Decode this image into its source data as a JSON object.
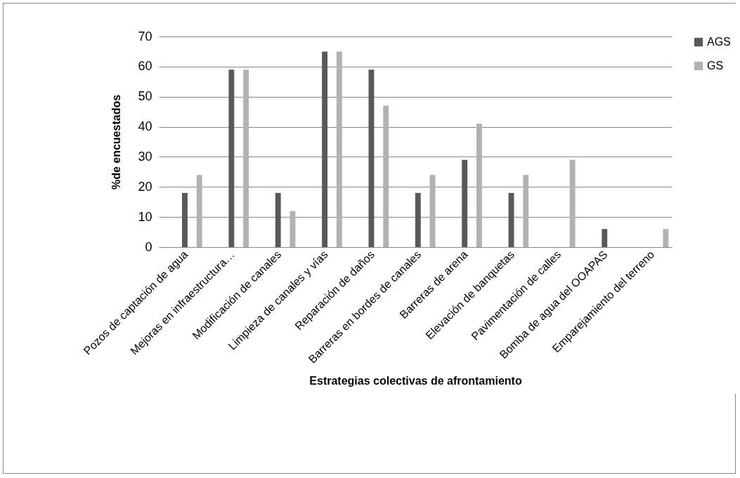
{
  "chart_data": {
    "type": "bar",
    "xlabel": "Estrategias colectivas de afrontamiento",
    "ylabel": "%de encuestados",
    "categories": [
      "Pozos de captación de agua",
      "Mejoras en infraestructura…",
      "Modificación de canales",
      "Limpieza de canales y vías",
      "Reparación de daños",
      "Barreras en bordes de canales",
      "Barreras de arena",
      "Elevación de banquetas",
      "Pavimentación de calles",
      "Bomba de agua del OOAPAS",
      "Emparejamiento del terreno"
    ],
    "series": [
      {
        "name": "AGS",
        "color": "#595959",
        "values": [
          18,
          59,
          18,
          65,
          59,
          18,
          29,
          18,
          0,
          6,
          0
        ]
      },
      {
        "name": "GS",
        "color": "#b2b2b2",
        "values": [
          24,
          59,
          12,
          65,
          47,
          24,
          41,
          24,
          29,
          0,
          6
        ]
      }
    ],
    "ylim": [
      0,
      70
    ],
    "yticks": [
      0,
      10,
      20,
      30,
      40,
      50,
      60,
      70
    ],
    "grid": "y",
    "legend": "right"
  }
}
